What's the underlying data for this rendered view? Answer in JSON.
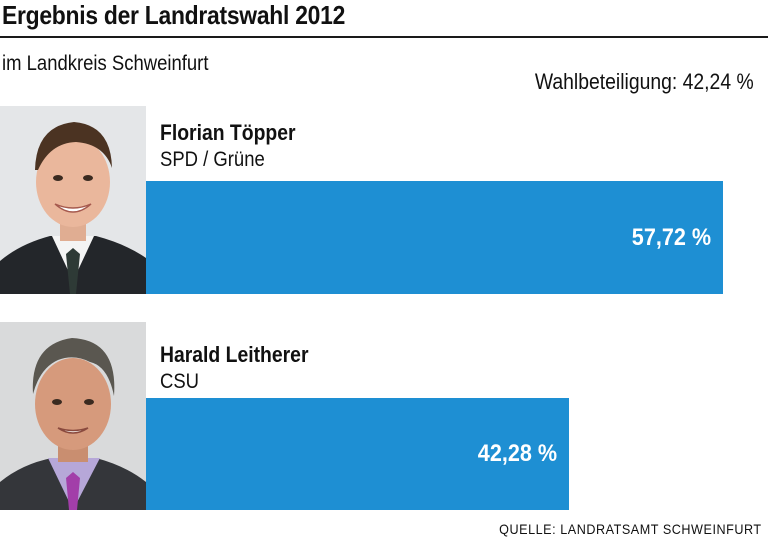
{
  "header": {
    "title": "Ergebnis der Landratswahl 2012",
    "subtitle": "im Landkreis Schweinfurt",
    "turnout": "Wahlbeteiligung: 42,24 %"
  },
  "candidates": [
    {
      "name": "Florian Töpper",
      "party": "SPD / Grüne",
      "label": "57,72 %"
    },
    {
      "name": "Harald Leitherer",
      "party": "CSU",
      "label": "42,28 %"
    }
  ],
  "source": "QUELLE: LANDRATSAMT SCHWEINFURT",
  "colors": {
    "bar": "#1e8fd3",
    "text": "#111111",
    "rule": "#1a1a1a"
  },
  "chart_data": {
    "type": "bar",
    "orientation": "horizontal",
    "title": "Ergebnis der Landratswahl 2012",
    "subtitle": "im Landkreis Schweinfurt",
    "categories": [
      "Florian Töpper",
      "Harald Leitherer"
    ],
    "values": [
      57.72,
      42.28
    ],
    "value_labels": [
      "57,72 %",
      "42,28 %"
    ],
    "xlim": [
      0,
      60
    ],
    "xlabel": "",
    "ylabel": "",
    "grid": false,
    "legend": "none"
  }
}
